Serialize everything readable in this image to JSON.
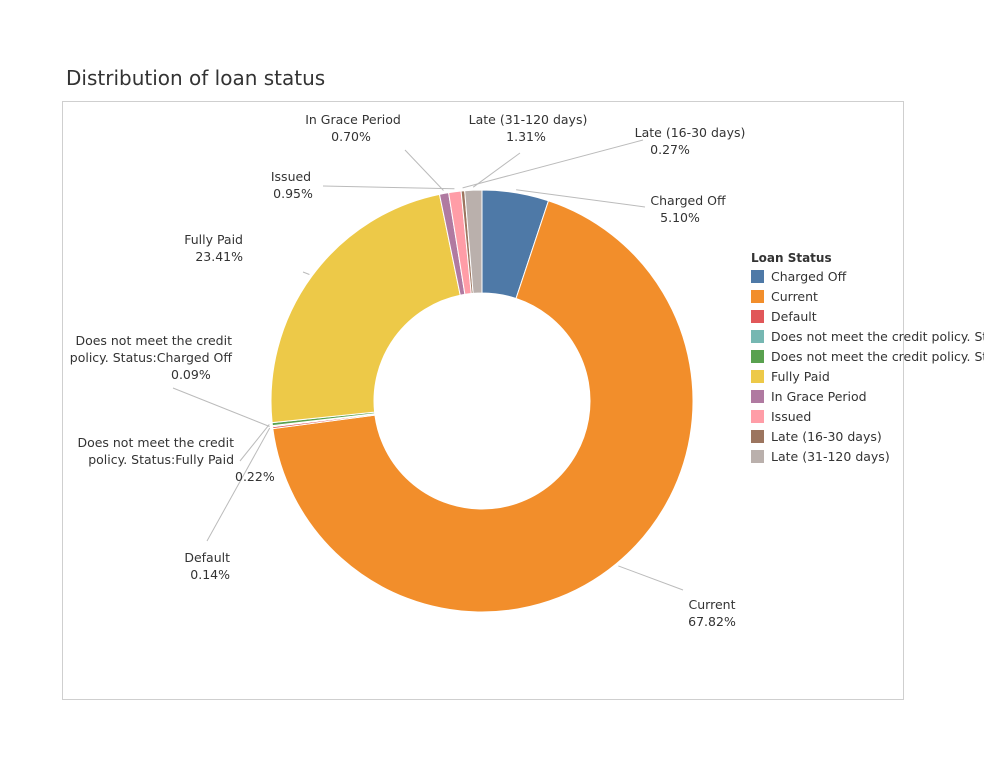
{
  "chart_data": {
    "type": "pie",
    "title": "Distribution of loan status",
    "legend_title": "Loan Status",
    "legend_placement": "right",
    "slices": [
      {
        "label": "Charged Off",
        "value": 5.1,
        "value_label": "5.10%",
        "color": "#4e79a7"
      },
      {
        "label": "Current",
        "value": 67.82,
        "value_label": "67.82%",
        "color": "#f28e2b"
      },
      {
        "label": "Default",
        "value": 0.14,
        "value_label": "0.14%",
        "color": "#e15759"
      },
      {
        "label": "Does not meet the credit policy. Status:Charged Off",
        "value": 0.09,
        "value_label": "0.09%",
        "color": "#76b7b2"
      },
      {
        "label": "Does not meet the credit policy. Status:Fully Paid",
        "value": 0.22,
        "value_label": "0.22%",
        "color": "#59a14f"
      },
      {
        "label": "Fully Paid",
        "value": 23.41,
        "value_label": "23.41%",
        "color": "#edc948"
      },
      {
        "label": "In Grace Period",
        "value": 0.7,
        "value_label": "0.70%",
        "color": "#b07aa1"
      },
      {
        "label": "Issued",
        "value": 0.95,
        "value_label": "0.95%",
        "color": "#ff9da7"
      },
      {
        "label": "Late (16-30 days)",
        "value": 0.27,
        "value_label": "0.27%",
        "color": "#9c755f"
      },
      {
        "label": "Late (31-120 days)",
        "value": 1.31,
        "value_label": "1.31%",
        "color": "#bab0ac"
      }
    ]
  }
}
